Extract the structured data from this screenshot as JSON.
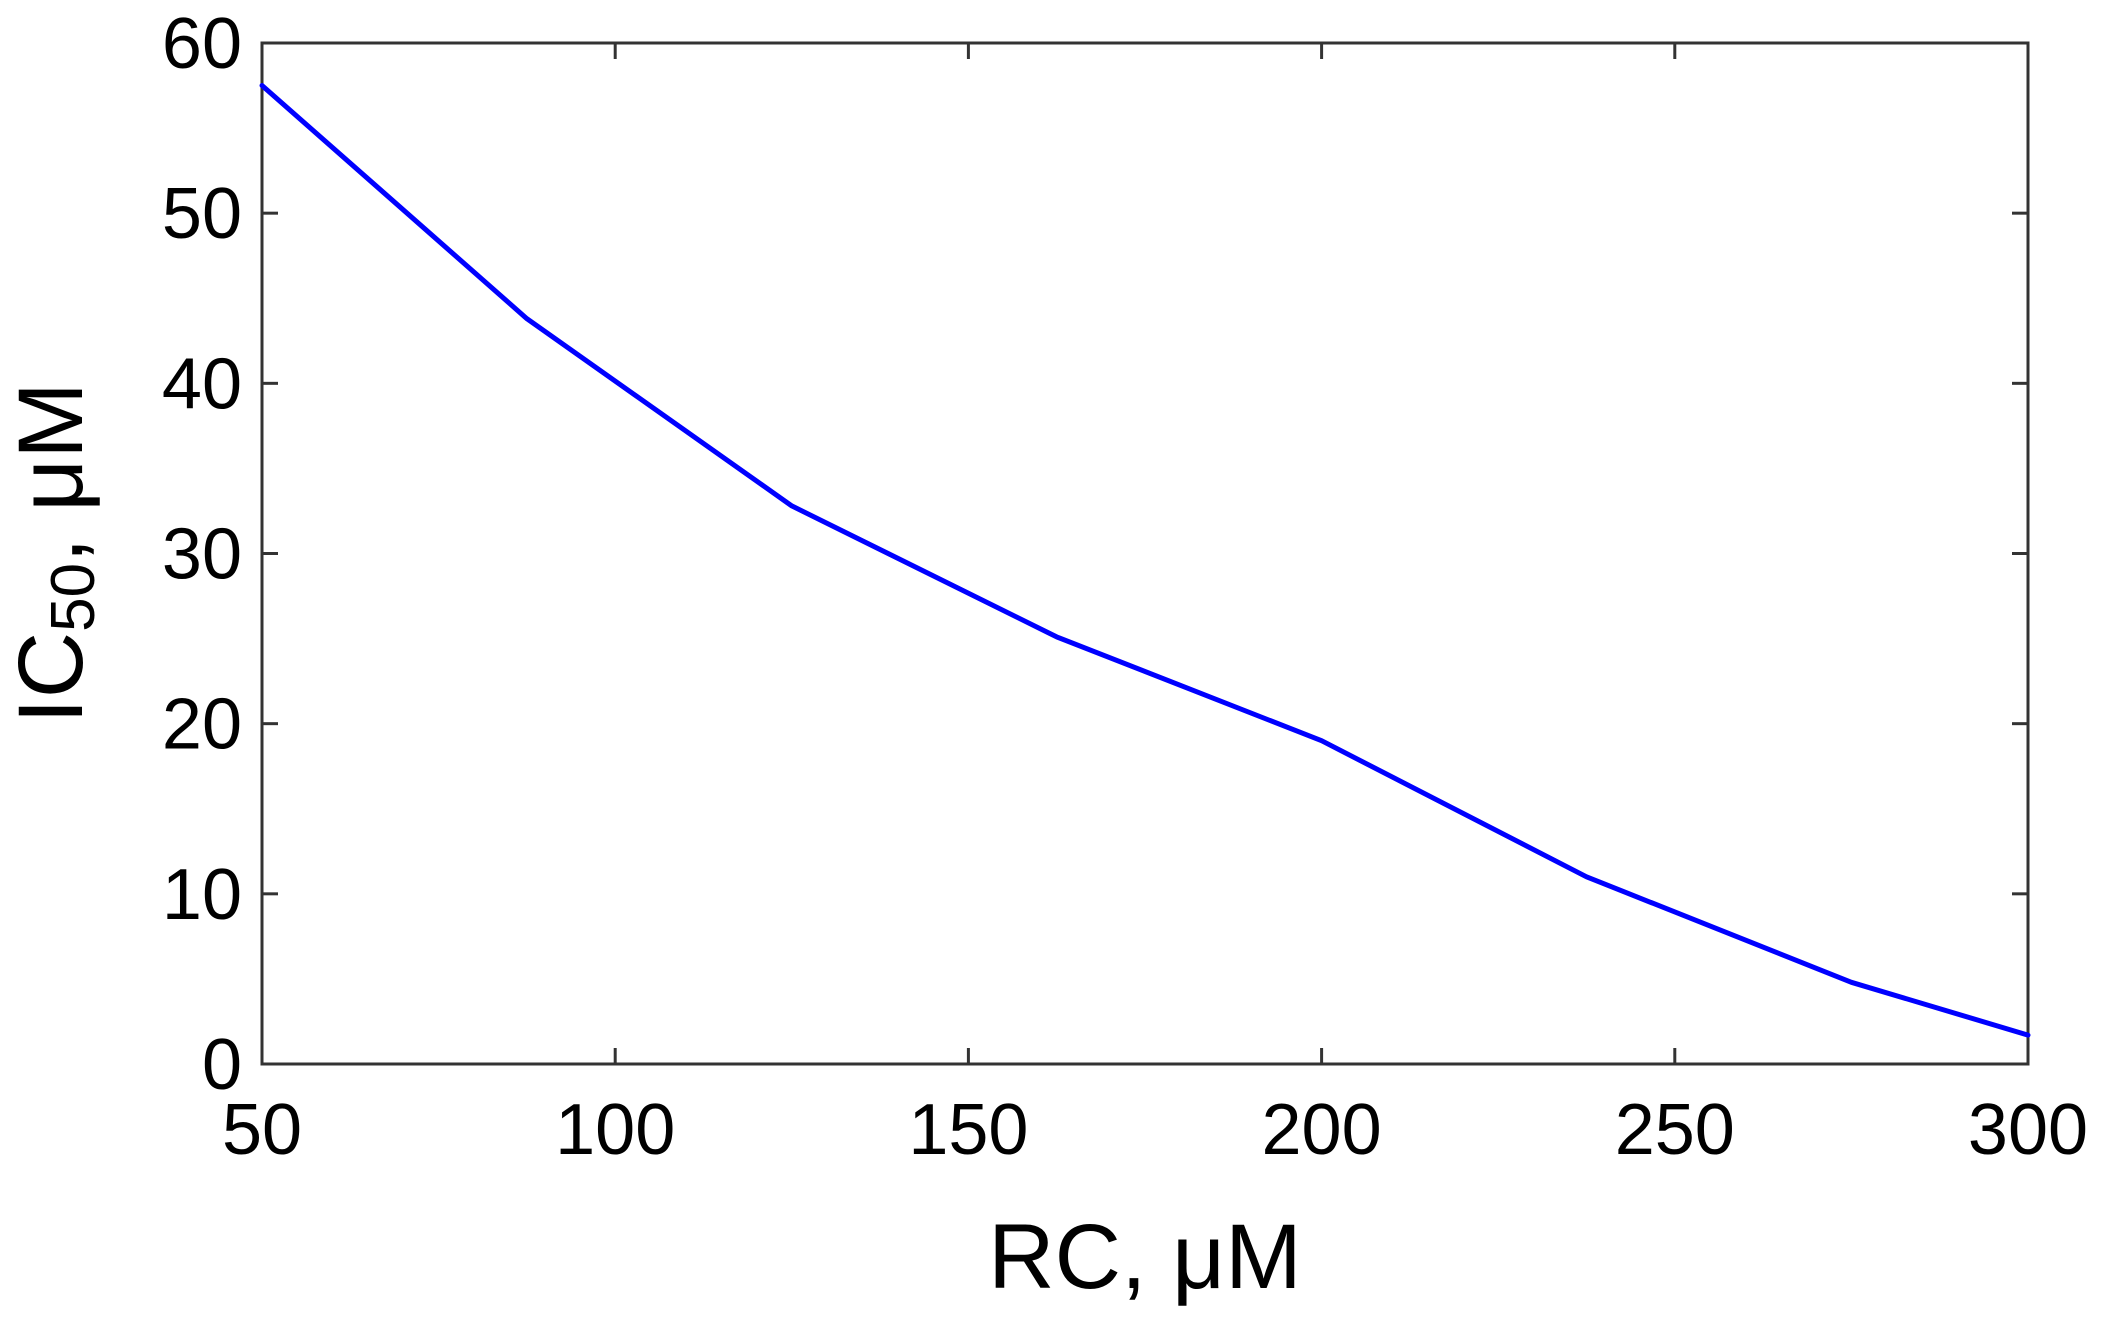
{
  "chart_data": {
    "type": "line",
    "x": [
      50,
      87.5,
      125,
      162.5,
      200,
      237.5,
      275,
      300
    ],
    "series": [
      {
        "values": [
          57.5,
          43.8,
          32.8,
          25.1,
          19.0,
          11.0,
          4.8,
          1.7
        ],
        "color": "#0000ff"
      }
    ],
    "xlabel": {
      "main": "RC, ",
      "unit": "μM"
    },
    "ylabel": {
      "main": "IC",
      "subscript": "50",
      "rest": ", μM"
    },
    "xlim": [
      50,
      300
    ],
    "ylim": [
      0,
      60
    ],
    "xticks": [
      50,
      100,
      150,
      200,
      250,
      300
    ],
    "yticks": [
      0,
      10,
      20,
      30,
      40,
      50,
      60
    ],
    "grid": false,
    "legend": "none",
    "colors": {
      "line": "#0000ff",
      "axes": "#333333",
      "text": "#000000"
    }
  }
}
